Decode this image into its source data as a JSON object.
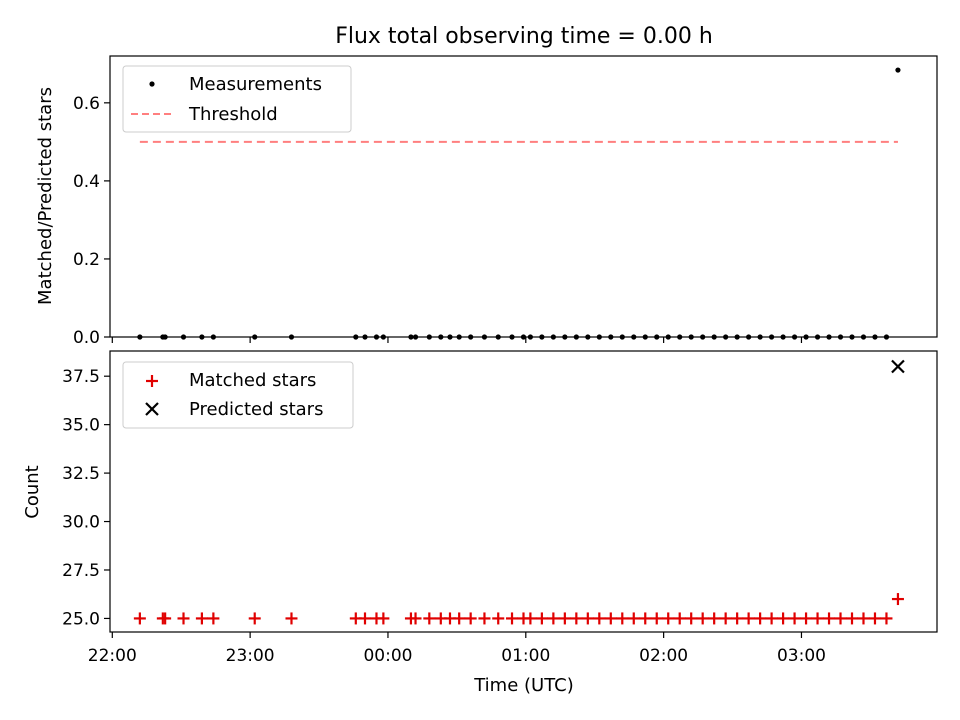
{
  "title": "Flux total observing time = 0.00 h",
  "xlabel": "Time (UTC)",
  "x_ticks": [
    {
      "value": "22:00",
      "label": "22:00"
    },
    {
      "value": "23:00",
      "label": "23:00"
    },
    {
      "value": "00:00",
      "label": "00:00"
    },
    {
      "value": "01:00",
      "label": "01:00"
    },
    {
      "value": "02:00",
      "label": "02:00"
    },
    {
      "value": "03:00",
      "label": "03:00"
    }
  ],
  "colors": {
    "measurements": "#000000",
    "threshold": "#ff7f7f",
    "matched": "#e00000",
    "predicted": "#000000"
  },
  "chart_data": [
    {
      "type": "scatter",
      "ylabel": "Matched/Predicted stars",
      "xlim": [
        "21:59",
        "03:59"
      ],
      "ylim": [
        0,
        0.72
      ],
      "y_ticks": [
        "0.0",
        "0.2",
        "0.4",
        "0.6"
      ],
      "legend": {
        "placement": "top-left",
        "entries": [
          "Measurements",
          "Threshold"
        ]
      },
      "series": [
        {
          "name": "Measurements",
          "marker": "dot",
          "x": [
            "22:12",
            "22:22",
            "22:23",
            "22:31",
            "22:39",
            "22:44",
            "23:02",
            "23:18",
            "23:46",
            "23:50",
            "23:55",
            "23:58",
            "00:10",
            "00:12",
            "00:18",
            "00:23",
            "00:27",
            "00:31",
            "00:36",
            "00:42",
            "00:48",
            "00:54",
            "00:59",
            "01:02",
            "01:07",
            "01:12",
            "01:17",
            "01:22",
            "01:27",
            "01:32",
            "01:37",
            "01:42",
            "01:47",
            "01:52",
            "01:57",
            "02:02",
            "02:07",
            "02:12",
            "02:17",
            "02:22",
            "02:27",
            "02:32",
            "02:37",
            "02:42",
            "02:47",
            "02:52",
            "02:57",
            "03:02",
            "03:07",
            "03:12",
            "03:17",
            "03:22",
            "03:27",
            "03:32",
            "03:37",
            "03:42"
          ],
          "y": [
            0,
            0,
            0,
            0,
            0,
            0,
            0,
            0,
            0,
            0,
            0,
            0,
            0,
            0,
            0,
            0,
            0,
            0,
            0,
            0,
            0,
            0,
            0,
            0,
            0,
            0,
            0,
            0,
            0,
            0,
            0,
            0,
            0,
            0,
            0,
            0,
            0,
            0,
            0,
            0,
            0,
            0,
            0,
            0,
            0,
            0,
            0,
            0,
            0,
            0,
            0,
            0,
            0,
            0,
            0,
            0.684
          ]
        },
        {
          "name": "Threshold",
          "style": "dashed",
          "x": [
            "22:12",
            "03:42"
          ],
          "y": [
            0.5,
            0.5
          ]
        }
      ]
    },
    {
      "type": "scatter",
      "ylabel": "Count",
      "xlim": [
        "21:59",
        "03:59"
      ],
      "ylim": [
        24.3,
        38.8
      ],
      "y_ticks": [
        "25.0",
        "27.5",
        "30.0",
        "32.5",
        "35.0",
        "37.5"
      ],
      "legend": {
        "placement": "top-left",
        "entries": [
          "Matched stars",
          "Predicted stars"
        ]
      },
      "series": [
        {
          "name": "Matched stars",
          "marker": "plus",
          "x": [
            "22:12",
            "22:22",
            "22:23",
            "22:31",
            "22:39",
            "22:44",
            "23:02",
            "23:18",
            "23:46",
            "23:50",
            "23:55",
            "23:58",
            "00:10",
            "00:12",
            "00:18",
            "00:23",
            "00:27",
            "00:31",
            "00:36",
            "00:42",
            "00:48",
            "00:54",
            "00:59",
            "01:02",
            "01:07",
            "01:12",
            "01:17",
            "01:22",
            "01:27",
            "01:32",
            "01:37",
            "01:42",
            "01:47",
            "01:52",
            "01:57",
            "02:02",
            "02:07",
            "02:12",
            "02:17",
            "02:22",
            "02:27",
            "02:32",
            "02:37",
            "02:42",
            "02:47",
            "02:52",
            "02:57",
            "03:02",
            "03:07",
            "03:12",
            "03:17",
            "03:22",
            "03:27",
            "03:32",
            "03:37",
            "03:42"
          ],
          "y": [
            25,
            25,
            25,
            25,
            25,
            25,
            25,
            25,
            25,
            25,
            25,
            25,
            25,
            25,
            25,
            25,
            25,
            25,
            25,
            25,
            25,
            25,
            25,
            25,
            25,
            25,
            25,
            25,
            25,
            25,
            25,
            25,
            25,
            25,
            25,
            25,
            25,
            25,
            25,
            25,
            25,
            25,
            25,
            25,
            25,
            25,
            25,
            25,
            25,
            25,
            25,
            25,
            25,
            25,
            25,
            26
          ]
        },
        {
          "name": "Predicted stars",
          "marker": "x",
          "x": [
            "03:42"
          ],
          "y": [
            38
          ]
        }
      ]
    }
  ]
}
